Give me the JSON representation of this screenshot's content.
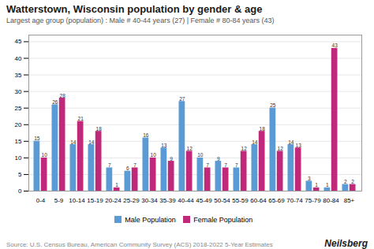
{
  "chart_data": {
    "type": "bar",
    "title": "Watterstown, Wisconsin population by gender & age",
    "subtitle": "Largest age group (population) : Male # 40-44 years (27) | Female # 80-84 years (43)",
    "categories": [
      "0-4",
      "5-9",
      "10-14",
      "15-19",
      "20-24",
      "25-29",
      "30-34",
      "35-39",
      "40-44",
      "45-49",
      "50-54",
      "55-59",
      "60-64",
      "65-69",
      "70-74",
      "75-79",
      "80-84",
      "85+"
    ],
    "series": [
      {
        "name": "Male Population",
        "color": "#5b9bd5",
        "values": [
          15,
          26,
          14,
          14,
          7,
          6,
          16,
          13,
          27,
          10,
          9,
          7,
          14,
          25,
          14,
          3,
          1,
          2
        ]
      },
      {
        "name": "Female Population",
        "color": "#c0287a",
        "values": [
          10,
          28,
          21,
          18,
          1,
          7,
          10,
          9,
          12,
          7,
          7,
          12,
          18,
          12,
          13,
          1,
          43,
          2
        ]
      }
    ],
    "ylim": [
      0,
      47
    ],
    "yticks": [
      0,
      5,
      10,
      15,
      20,
      25,
      30,
      35,
      40,
      45
    ],
    "grid": true,
    "legend": "bottom",
    "data_labels": true,
    "annotations": [
      "Source: U.S. Census Bureau, American Community Survey (ACS) 2018-2022 5-Year Estimates",
      "Neilsberg"
    ]
  }
}
